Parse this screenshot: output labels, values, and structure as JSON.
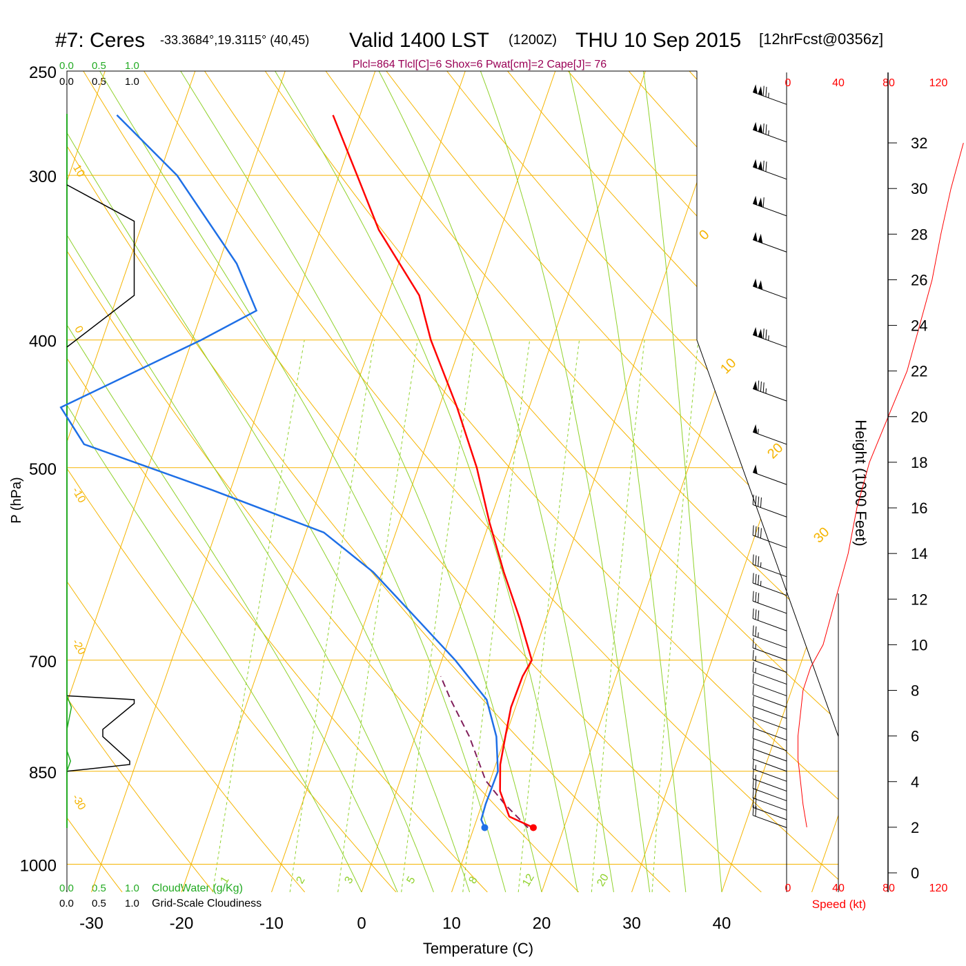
{
  "header": {
    "station": "#7: Ceres",
    "coords": "-33.3684°,19.3115° (40,45)",
    "valid": "Valid 1400 LST",
    "zulu": "(1200Z)",
    "date": "THU 10 Sep 2015",
    "forecast": "[12hrFcst@0356z]",
    "indices": "Plcl=864 Tlcl[C]=6 Shox=6 Pwat[cm]=2 Cape[J]= 76"
  },
  "colors": {
    "temperature": "#ff0000",
    "dewpoint": "#1e6fe6",
    "parcel": "#7f1d5a",
    "isotherm": "#f5b400",
    "dry_adiabat": "#f5b400",
    "moist_adiabat": "#8fd12a",
    "mixing_ratio": "#8fd12a",
    "cloud_water": "#22aa22",
    "title_accent": "#990055",
    "speed_axis": "#ff0000"
  },
  "scales": {
    "cloud_water_top": [
      "0.0",
      "0.5",
      "1.0"
    ],
    "cloudiness_top": [
      "0.0",
      "0.5",
      "1.0"
    ],
    "cloud_water_bottom": [
      "0.0",
      "0.5",
      "1.0"
    ],
    "cloudiness_bottom": [
      "0.0",
      "0.5",
      "1.0"
    ],
    "cloud_water_label": "CloudWater (g/Kg)",
    "cloudiness_label": "Grid-Scale Cloudiness",
    "speed_ticks": [
      "0",
      "40",
      "80",
      "120"
    ],
    "speed_label": "Speed (kt)"
  },
  "chart_data": {
    "type": "skew-t",
    "xlabel": "Temperature (C)",
    "ylabel": "P (hPa)",
    "y2label": "Height (1000 Feet)",
    "x_ticks": [
      -30,
      -20,
      -10,
      0,
      10,
      20,
      30,
      40
    ],
    "p_ticks": [
      250,
      300,
      400,
      500,
      700,
      850,
      1000
    ],
    "height_ticks": [
      0,
      2,
      4,
      6,
      8,
      10,
      12,
      14,
      16,
      18,
      20,
      22,
      24,
      26,
      28,
      30,
      32
    ],
    "isotherm_labels": [
      0,
      10,
      20,
      30
    ],
    "left_labels": [
      10,
      0,
      -10,
      -20,
      -30
    ],
    "mixing_ratio_labels": [
      "1",
      "2",
      "3",
      "5",
      "8",
      "12",
      "20"
    ],
    "temperature": [
      {
        "p": 938,
        "t": 16.6
      },
      {
        "p": 920,
        "t": 13.5
      },
      {
        "p": 880,
        "t": 11.5
      },
      {
        "p": 840,
        "t": 10.5
      },
      {
        "p": 800,
        "t": 10.0
      },
      {
        "p": 760,
        "t": 9.5
      },
      {
        "p": 720,
        "t": 9.6
      },
      {
        "p": 700,
        "t": 10.0
      },
      {
        "p": 650,
        "t": 7.0
      },
      {
        "p": 600,
        "t": 3.5
      },
      {
        "p": 550,
        "t": 0.0
      },
      {
        "p": 500,
        "t": -3.5
      },
      {
        "p": 450,
        "t": -8.0
      },
      {
        "p": 400,
        "t": -13.5
      },
      {
        "p": 370,
        "t": -16.5
      },
      {
        "p": 330,
        "t": -23.5
      },
      {
        "p": 300,
        "t": -28.0
      },
      {
        "p": 270,
        "t": -33.0
      }
    ],
    "dewpoint": [
      {
        "p": 938,
        "t": 11.2
      },
      {
        "p": 925,
        "t": 10.5
      },
      {
        "p": 900,
        "t": 10.4
      },
      {
        "p": 850,
        "t": 10.5
      },
      {
        "p": 800,
        "t": 9.0
      },
      {
        "p": 750,
        "t": 6.5
      },
      {
        "p": 700,
        "t": 1.5
      },
      {
        "p": 650,
        "t": -4.5
      },
      {
        "p": 600,
        "t": -11.0
      },
      {
        "p": 560,
        "t": -18.0
      },
      {
        "p": 520,
        "t": -32.0
      },
      {
        "p": 480,
        "t": -48.0
      },
      {
        "p": 450,
        "t": -52.0
      },
      {
        "p": 400,
        "t": -39.0
      },
      {
        "p": 380,
        "t": -34.0
      },
      {
        "p": 350,
        "t": -38.0
      },
      {
        "p": 300,
        "t": -48.0
      },
      {
        "p": 270,
        "t": -57.0
      }
    ],
    "parcel": [
      {
        "p": 938,
        "t": 16.0
      },
      {
        "p": 900,
        "t": 12.5
      },
      {
        "p": 864,
        "t": 9.5
      },
      {
        "p": 800,
        "t": 6.0
      },
      {
        "p": 750,
        "t": 2.5
      },
      {
        "p": 720,
        "t": 0.5
      }
    ],
    "cloudiness_upper": [
      {
        "p": 305,
        "v": 0.0
      },
      {
        "p": 325,
        "v": 0.75
      },
      {
        "p": 370,
        "v": 0.75
      },
      {
        "p": 405,
        "v": 0.0
      }
    ],
    "cloudiness_lower": [
      {
        "p": 745,
        "v": 0.0
      },
      {
        "p": 750,
        "v": 0.75
      },
      {
        "p": 755,
        "v": 0.75
      },
      {
        "p": 790,
        "v": 0.4
      },
      {
        "p": 800,
        "v": 0.4
      },
      {
        "p": 835,
        "v": 0.7
      },
      {
        "p": 840,
        "v": 0.7
      },
      {
        "p": 850,
        "v": 0.0
      }
    ],
    "cloud_water_lower": [
      {
        "p": 745,
        "v": 0.0
      },
      {
        "p": 760,
        "v": 0.05
      },
      {
        "p": 790,
        "v": 0.0
      },
      {
        "p": 820,
        "v": 0.0
      },
      {
        "p": 835,
        "v": 0.04
      },
      {
        "p": 850,
        "v": 0.0
      }
    ],
    "wind_speed_profile": [
      {
        "h": 2.0,
        "kt": 15
      },
      {
        "h": 3.0,
        "kt": 12
      },
      {
        "h": 4.0,
        "kt": 10
      },
      {
        "h": 5.0,
        "kt": 8
      },
      {
        "h": 6.0,
        "kt": 8
      },
      {
        "h": 7.0,
        "kt": 10
      },
      {
        "h": 8.0,
        "kt": 12
      },
      {
        "h": 9.0,
        "kt": 18
      },
      {
        "h": 10.0,
        "kt": 28
      },
      {
        "h": 12.0,
        "kt": 38
      },
      {
        "h": 14.0,
        "kt": 48
      },
      {
        "h": 16.0,
        "kt": 55
      },
      {
        "h": 18.0,
        "kt": 65
      },
      {
        "h": 20.0,
        "kt": 80
      },
      {
        "h": 22.0,
        "kt": 95
      },
      {
        "h": 24.0,
        "kt": 105
      },
      {
        "h": 26.0,
        "kt": 115
      },
      {
        "h": 28.0,
        "kt": 122
      },
      {
        "h": 30.0,
        "kt": 130
      },
      {
        "h": 32.0,
        "kt": 140
      }
    ],
    "wind_barbs": [
      {
        "p": 265,
        "kt": 125
      },
      {
        "p": 283,
        "kt": 125
      },
      {
        "p": 302,
        "kt": 120
      },
      {
        "p": 322,
        "kt": 110
      },
      {
        "p": 343,
        "kt": 100
      },
      {
        "p": 372,
        "kt": 100
      },
      {
        "p": 405,
        "kt": 125
      },
      {
        "p": 445,
        "kt": 85
      },
      {
        "p": 480,
        "kt": 55
      },
      {
        "p": 515,
        "kt": 50
      },
      {
        "p": 545,
        "kt": 40
      },
      {
        "p": 575,
        "kt": 40
      },
      {
        "p": 605,
        "kt": 35
      },
      {
        "p": 625,
        "kt": 35
      },
      {
        "p": 645,
        "kt": 30
      },
      {
        "p": 665,
        "kt": 30
      },
      {
        "p": 685,
        "kt": 25
      },
      {
        "p": 700,
        "kt": 15
      },
      {
        "p": 715,
        "kt": 15
      },
      {
        "p": 730,
        "kt": 15
      },
      {
        "p": 745,
        "kt": 10
      },
      {
        "p": 760,
        "kt": 10
      },
      {
        "p": 775,
        "kt": 10
      },
      {
        "p": 790,
        "kt": 10
      },
      {
        "p": 805,
        "kt": 10
      },
      {
        "p": 820,
        "kt": 10
      },
      {
        "p": 835,
        "kt": 10
      },
      {
        "p": 850,
        "kt": 10
      },
      {
        "p": 865,
        "kt": 15
      },
      {
        "p": 880,
        "kt": 15
      },
      {
        "p": 895,
        "kt": 20
      },
      {
        "p": 910,
        "kt": 20
      },
      {
        "p": 925,
        "kt": 20
      },
      {
        "p": 938,
        "kt": 20
      }
    ]
  }
}
